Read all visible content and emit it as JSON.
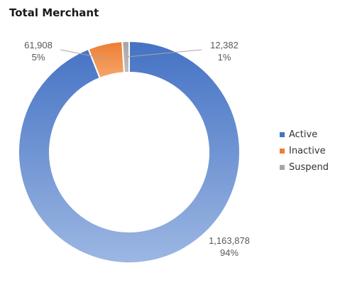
{
  "title": "Total Merchant",
  "chart_data": {
    "type": "pie",
    "title": "Total Merchant",
    "legend_position": "right",
    "categories": [
      "Active",
      "Inactive",
      "Suspend"
    ],
    "values": [
      1163878,
      61908,
      12382
    ],
    "value_labels": [
      "1,163,878",
      "61,908",
      "12,382"
    ],
    "percent_labels": [
      "94%",
      "5%",
      "1%"
    ],
    "colors": [
      "#4472c4",
      "#ed7d31",
      "#a5a5a5"
    ],
    "donut": true
  }
}
